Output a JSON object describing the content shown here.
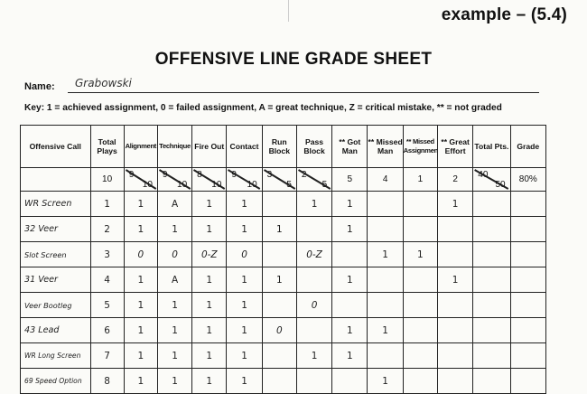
{
  "header": {
    "page_tag": "example – (5.4)",
    "title": "OFFENSIVE LINE GRADE SHEET",
    "name_label": "Name:",
    "name_value": "Grabowski",
    "key": "Key:  1 = achieved assignment,   0 = failed assignment,   A = great technique,   Z = critical mistake,   ** = not graded"
  },
  "columns": [
    "Offensive Call",
    "Total Plays",
    "Alignment",
    "Technique",
    "Fire Out",
    "Contact",
    "Run Block",
    "Pass Block",
    "** Got Man",
    "** Missed Man",
    "** Missed Assignment",
    "** Great Effort",
    "Total Pts.",
    "Grade"
  ],
  "totals": {
    "total_plays": "10",
    "alignment": [
      "9",
      "10"
    ],
    "technique": [
      "9",
      "10"
    ],
    "fire_out": [
      "8",
      "10"
    ],
    "contact": [
      "9",
      "10"
    ],
    "run_block": [
      "3",
      "5"
    ],
    "pass_block": [
      "2",
      "5"
    ],
    "got_man": "5",
    "missed_man": "4",
    "missed_assignment": "1",
    "great_effort": "2",
    "total_pts": [
      "40",
      "50"
    ],
    "grade": "80%"
  },
  "rows": [
    {
      "call": "WR Screen",
      "plays": "1",
      "alignment": "1",
      "technique": "A",
      "fire_out": "1",
      "contact": "1",
      "run_block": "",
      "pass_block": "1",
      "got_man": "1",
      "missed_man": "",
      "missed_assignment": "",
      "great_effort": "1",
      "total_pts": "",
      "grade": ""
    },
    {
      "call": "32 Veer",
      "plays": "2",
      "alignment": "1",
      "technique": "1",
      "fire_out": "1",
      "contact": "1",
      "run_block": "1",
      "pass_block": "",
      "got_man": "1",
      "missed_man": "",
      "missed_assignment": "",
      "great_effort": "",
      "total_pts": "",
      "grade": ""
    },
    {
      "call": "Slot Screen",
      "plays": "3",
      "alignment": "0",
      "technique": "0",
      "fire_out": "0-Z",
      "contact": "0",
      "run_block": "",
      "pass_block": "0-Z",
      "got_man": "",
      "missed_man": "1",
      "missed_assignment": "1",
      "great_effort": "",
      "total_pts": "",
      "grade": ""
    },
    {
      "call": "31 Veer",
      "plays": "4",
      "alignment": "1",
      "technique": "A",
      "fire_out": "1",
      "contact": "1",
      "run_block": "1",
      "pass_block": "",
      "got_man": "1",
      "missed_man": "",
      "missed_assignment": "",
      "great_effort": "1",
      "total_pts": "",
      "grade": ""
    },
    {
      "call": "Veer Bootleg",
      "plays": "5",
      "alignment": "1",
      "technique": "1",
      "fire_out": "1",
      "contact": "1",
      "run_block": "",
      "pass_block": "0",
      "got_man": "",
      "missed_man": "",
      "missed_assignment": "",
      "great_effort": "",
      "total_pts": "",
      "grade": ""
    },
    {
      "call": "43 Lead",
      "plays": "6",
      "alignment": "1",
      "technique": "1",
      "fire_out": "1",
      "contact": "1",
      "run_block": "0",
      "pass_block": "",
      "got_man": "1",
      "missed_man": "1",
      "missed_assignment": "",
      "great_effort": "",
      "total_pts": "",
      "grade": ""
    },
    {
      "call": "WR Long Screen",
      "plays": "7",
      "alignment": "1",
      "technique": "1",
      "fire_out": "1",
      "contact": "1",
      "run_block": "",
      "pass_block": "1",
      "got_man": "1",
      "missed_man": "",
      "missed_assignment": "",
      "great_effort": "",
      "total_pts": "",
      "grade": ""
    },
    {
      "call": "69 Speed Option",
      "plays": "8",
      "alignment": "1",
      "technique": "1",
      "fire_out": "1",
      "contact": "1",
      "run_block": "",
      "pass_block": "",
      "got_man": "",
      "missed_man": "1",
      "missed_assignment": "",
      "great_effort": "",
      "total_pts": "",
      "grade": ""
    }
  ]
}
